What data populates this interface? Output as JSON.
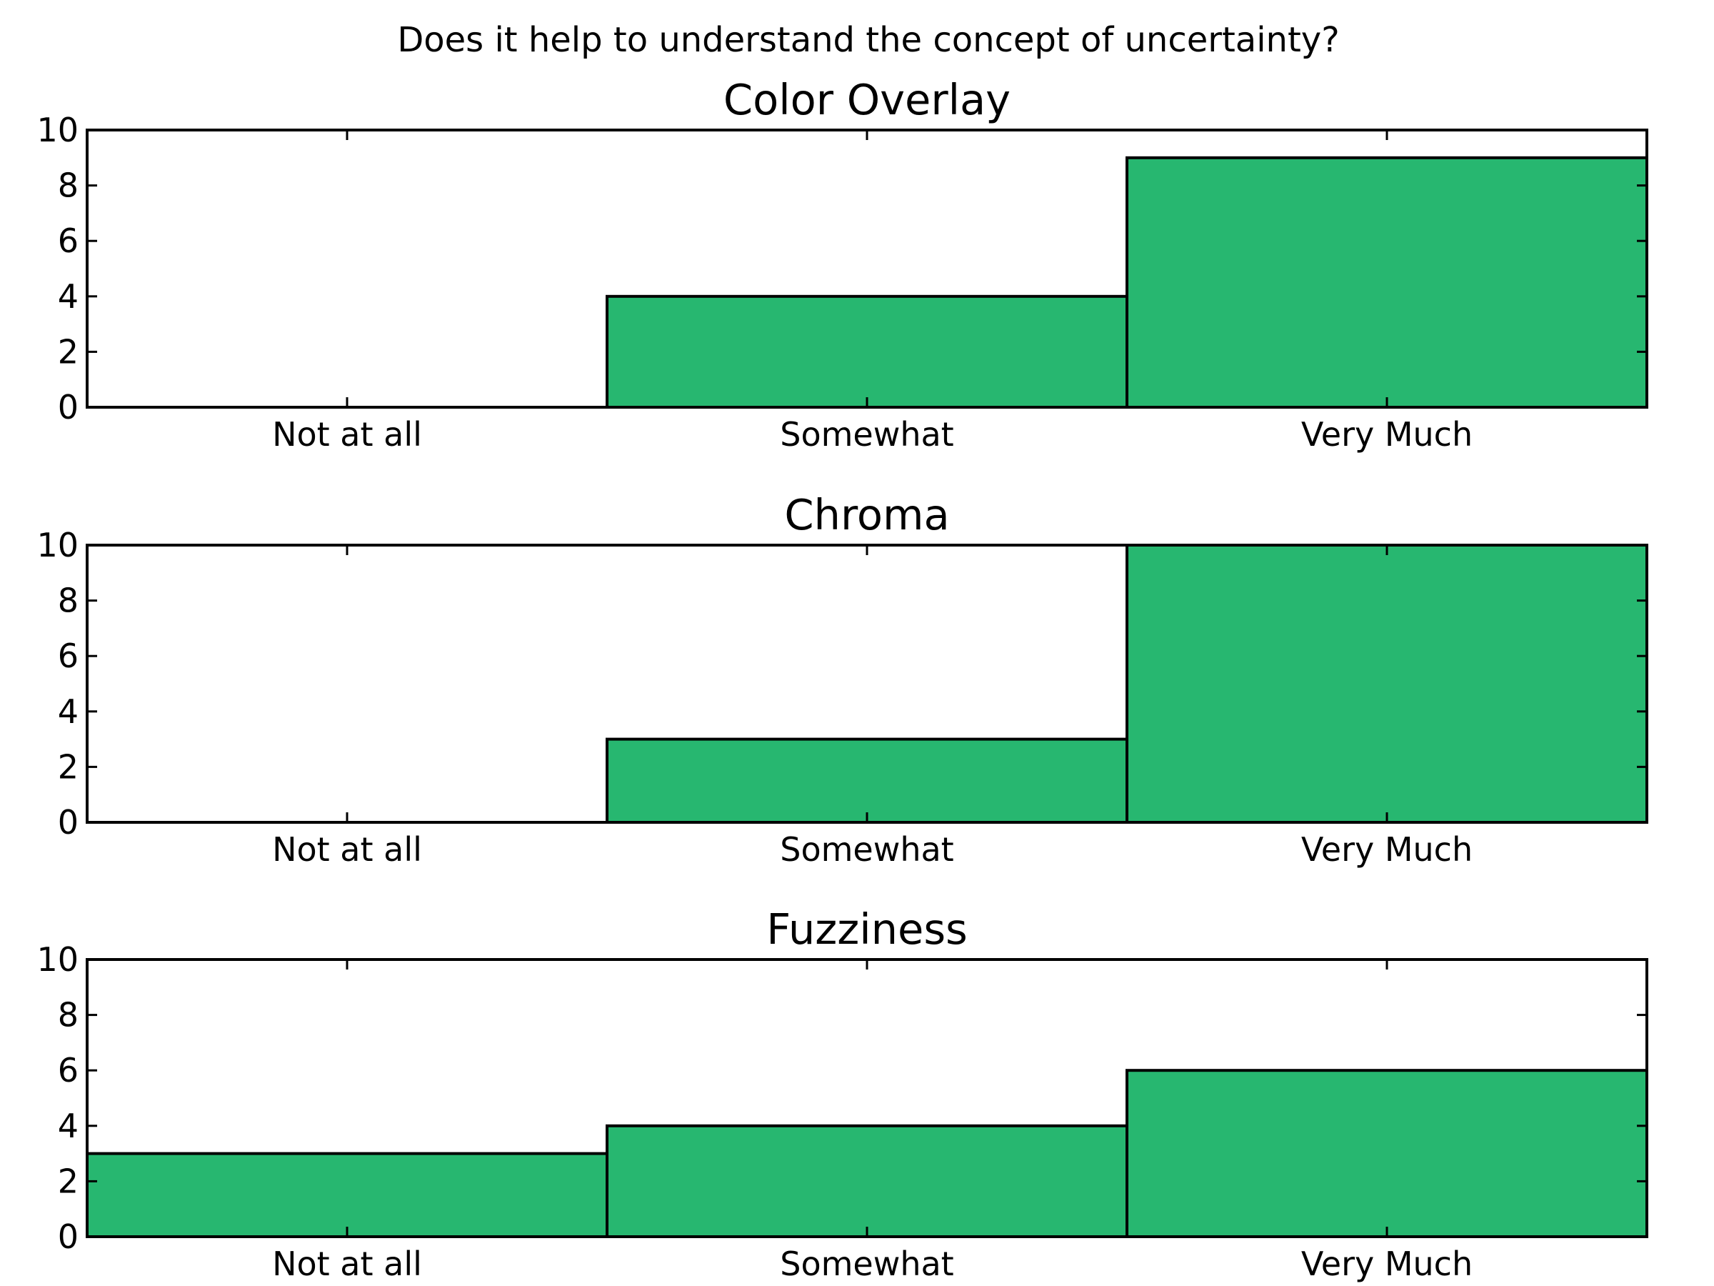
{
  "chart_data": {
    "type": "bar",
    "title": "Does it help to understand the concept of uncertainty?",
    "bar_color": "#27b770",
    "grid": false,
    "panels": [
      {
        "title": "Color Overlay",
        "categories": [
          "Not at all",
          "Somewhat",
          "Very Much"
        ],
        "values": [
          0,
          4,
          9
        ],
        "ylim": [
          0,
          10
        ],
        "yticks": [
          0,
          2,
          4,
          6,
          8,
          10
        ]
      },
      {
        "title": "Chroma",
        "categories": [
          "Not at all",
          "Somewhat",
          "Very Much"
        ],
        "values": [
          0,
          3,
          10
        ],
        "ylim": [
          0,
          10
        ],
        "yticks": [
          0,
          2,
          4,
          6,
          8,
          10
        ]
      },
      {
        "title": "Fuzziness",
        "categories": [
          "Not at all",
          "Somewhat",
          "Very Much"
        ],
        "values": [
          3,
          4,
          6
        ],
        "ylim": [
          0,
          10
        ],
        "yticks": [
          0,
          2,
          4,
          6,
          8,
          10
        ]
      }
    ]
  }
}
